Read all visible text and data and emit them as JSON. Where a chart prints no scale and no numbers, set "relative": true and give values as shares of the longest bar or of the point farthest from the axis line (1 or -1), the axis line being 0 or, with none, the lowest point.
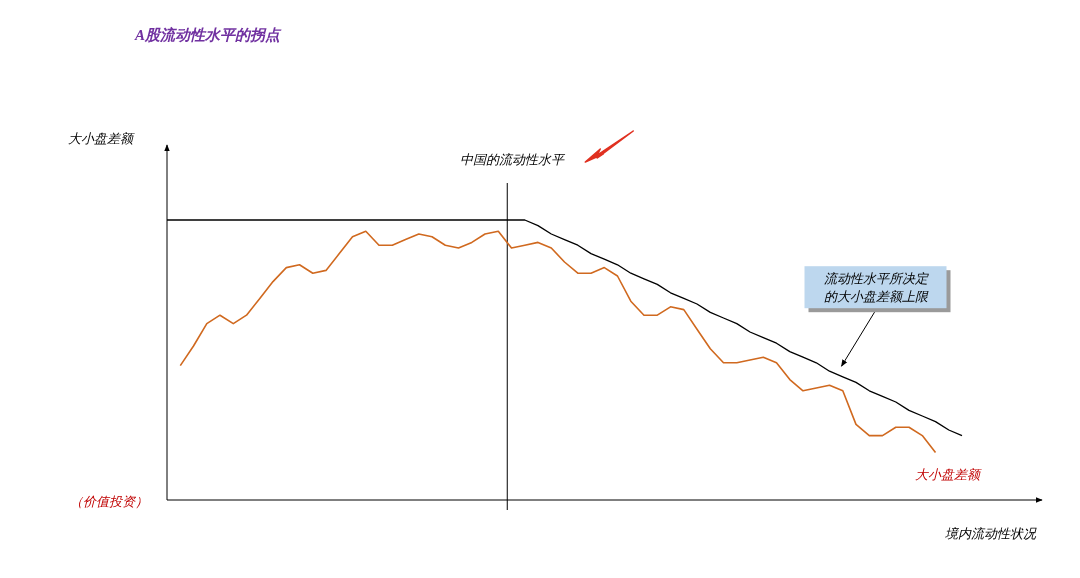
{
  "chart_data": {
    "type": "line",
    "relative": true,
    "title": "A股流动性水平的拐点",
    "xlabel": "境内流动性状况",
    "annotations": [
      "（价值投资）",
      "中国的流动性水平",
      "大小盘差额"
    ],
    "legend": false,
    "grid": false,
    "categories": [
      null,
      null,
      null,
      null,
      null,
      null,
      null,
      null,
      null,
      null,
      null,
      null,
      null,
      null,
      null,
      null,
      null,
      null,
      null,
      null,
      null,
      null,
      null,
      null,
      null,
      null,
      null,
      null,
      null,
      null,
      null,
      null,
      null,
      null,
      null,
      null,
      null,
      null,
      null,
      null,
      null,
      null,
      null,
      null,
      null,
      null,
      null,
      null,
      null,
      null,
      null,
      null,
      null,
      null,
      null,
      null,
      null,
      null,
      null,
      null,
      null
    ],
    "series": [
      {
        "name": "大小盘差额",
        "color": "#d0691f",
        "values": [
          null,
          0.48,
          0.55,
          0.63,
          0.66,
          0.63,
          0.66,
          0.72,
          0.78,
          0.83,
          0.84,
          0.81,
          0.82,
          0.88,
          0.94,
          0.96,
          0.91,
          0.91,
          0.93,
          0.95,
          0.94,
          0.91,
          0.9,
          0.92,
          0.95,
          0.96,
          0.9,
          0.91,
          0.92,
          0.9,
          0.85,
          0.81,
          0.81,
          0.83,
          0.8,
          0.71,
          0.66,
          0.66,
          0.69,
          0.68,
          0.61,
          0.54,
          0.49,
          0.49,
          0.5,
          0.51,
          0.49,
          0.43,
          0.39,
          0.4,
          0.41,
          0.39,
          0.27,
          0.23,
          0.23,
          0.26,
          0.26,
          0.23,
          0.17,
          null,
          null
        ]
      },
      {
        "name": "流动性水平所决定的大小盘差额上限",
        "color": "#000000",
        "values": [
          1,
          1,
          1,
          1,
          1,
          1,
          1,
          1,
          1,
          1,
          1,
          1,
          1,
          1,
          1,
          1,
          1,
          1,
          1,
          1,
          1,
          1,
          1,
          1,
          1,
          1,
          1,
          1,
          0.98,
          0.95,
          0.93,
          0.91,
          0.88,
          0.86,
          0.84,
          0.81,
          0.79,
          0.77,
          0.74,
          0.72,
          0.7,
          0.67,
          0.65,
          0.63,
          0.6,
          0.58,
          0.56,
          0.53,
          0.51,
          0.49,
          0.46,
          0.44,
          0.42,
          0.39,
          0.37,
          0.35,
          0.32,
          0.3,
          0.28,
          0.25,
          0.23
        ]
      }
    ]
  }
}
